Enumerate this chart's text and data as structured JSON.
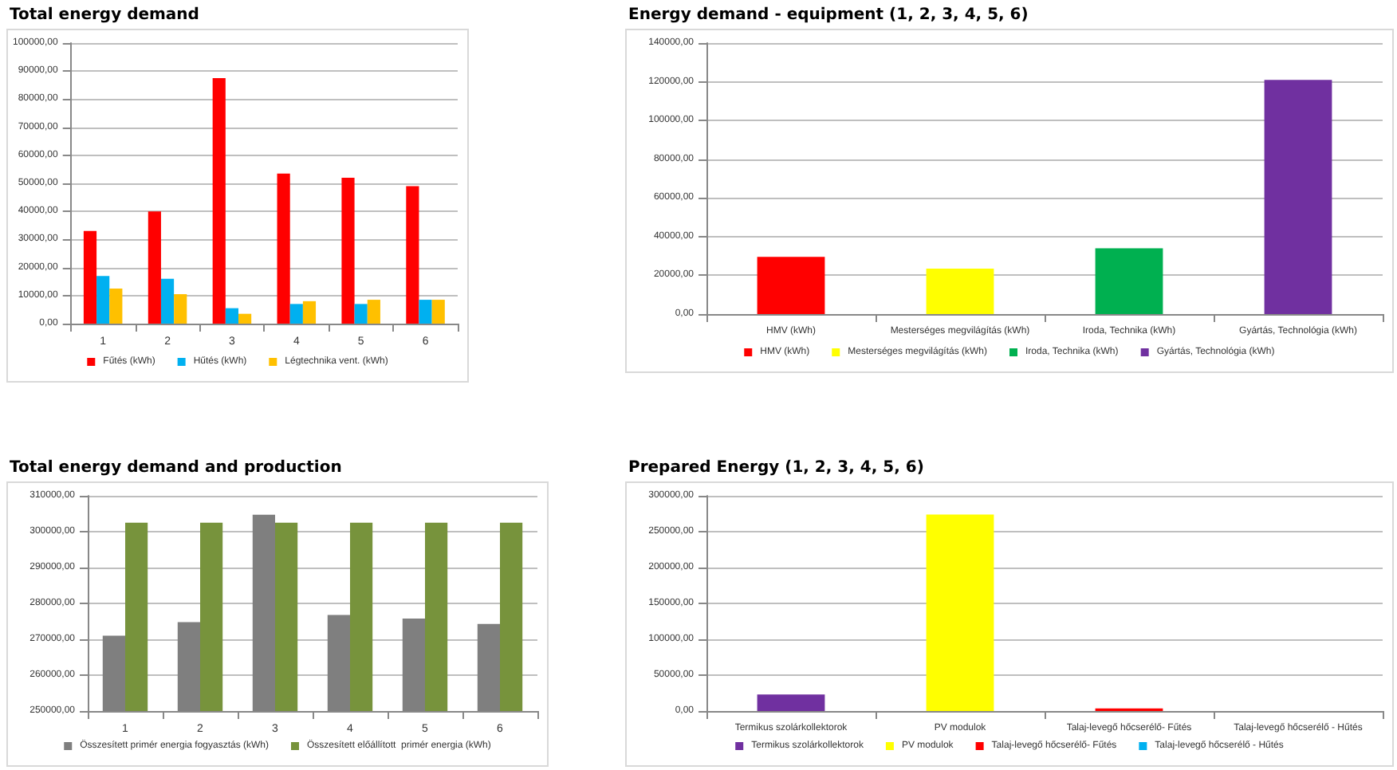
{
  "chart_data": [
    {
      "type": "bar",
      "title": "Total energy demand",
      "categories": [
        "1",
        "2",
        "3",
        "4",
        "5",
        "6"
      ],
      "series": [
        {
          "name": "Fűtés (kWh)",
          "color": "#ff0000",
          "values": [
            33000,
            40000,
            87500,
            53500,
            52000,
            49000
          ]
        },
        {
          "name": "Hűtés (kWh)",
          "color": "#00b0f0",
          "values": [
            17000,
            16000,
            5500,
            7000,
            7000,
            8500
          ]
        },
        {
          "name": "Légtechnika vent. (kWh)",
          "color": "#ffc000",
          "values": [
            12500,
            10500,
            3500,
            8000,
            8500,
            8500
          ]
        }
      ],
      "ylim": [
        0,
        100000
      ],
      "yticks": [
        {
          "value": 0,
          "label": "0,00"
        },
        {
          "value": 10000,
          "label": "10000,00"
        },
        {
          "value": 20000,
          "label": "20000,00"
        },
        {
          "value": 30000,
          "label": "30000,00"
        },
        {
          "value": 40000,
          "label": "40000,00"
        },
        {
          "value": 50000,
          "label": "50000,00"
        },
        {
          "value": 60000,
          "label": "60000,00"
        },
        {
          "value": 70000,
          "label": "70000,00"
        },
        {
          "value": 80000,
          "label": "80000,00"
        },
        {
          "value": 90000,
          "label": "90000,00"
        },
        {
          "value": 100000,
          "label": "100000,00"
        }
      ],
      "grid": "y",
      "legend": "bottom"
    },
    {
      "type": "bar",
      "title": "Energy demand - equipment (1, 2, 3, 4, 5, 6)",
      "categories": [
        "HMV (kWh)",
        "Mesterséges megvilágítás (kWh)",
        "Iroda, Technika (kWh)",
        "Gyártás, Technológia (kWh)"
      ],
      "stacked": true,
      "series": [
        {
          "name": "HMV (kWh)",
          "color": "#ff0000",
          "values": [
            29500,
            null,
            null,
            null
          ]
        },
        {
          "name": "Mesterséges megvilágítás (kWh)",
          "color": "#ffff00",
          "values": [
            null,
            23500,
            null,
            null
          ]
        },
        {
          "name": "Iroda, Technika (kWh)",
          "color": "#00b050",
          "values": [
            null,
            null,
            34000,
            null
          ]
        },
        {
          "name": "Gyártás, Technológia (kWh)",
          "color": "#7030a0",
          "values": [
            null,
            null,
            null,
            121000
          ]
        }
      ],
      "ylim": [
        0,
        140000
      ],
      "yticks": [
        {
          "value": 0,
          "label": "0,00"
        },
        {
          "value": 20000,
          "label": "20000,00"
        },
        {
          "value": 40000,
          "label": "40000,00"
        },
        {
          "value": 60000,
          "label": "60000,00"
        },
        {
          "value": 80000,
          "label": "80000,00"
        },
        {
          "value": 100000,
          "label": "100000,00"
        },
        {
          "value": 120000,
          "label": "120000,00"
        },
        {
          "value": 140000,
          "label": "140000,00"
        }
      ],
      "grid": "y",
      "legend": "bottom"
    },
    {
      "type": "bar",
      "title": "Total energy demand and production",
      "categories": [
        "1",
        "2",
        "3",
        "4",
        "5",
        "6"
      ],
      "series": [
        {
          "name": "Összesített primér energia fogyasztás (kWh)",
          "color": "#7f7f7f",
          "values": [
            271000,
            274800,
            304700,
            276800,
            275800,
            274300
          ]
        },
        {
          "name": "Összesített előállított  primér energia (kWh)",
          "color": "#77933c",
          "values": [
            302500,
            302500,
            302500,
            302500,
            302500,
            302500
          ]
        }
      ],
      "ylim": [
        250000,
        310000
      ],
      "yticks": [
        {
          "value": 250000,
          "label": "250000,00"
        },
        {
          "value": 260000,
          "label": "260000,00"
        },
        {
          "value": 270000,
          "label": "270000,00"
        },
        {
          "value": 280000,
          "label": "280000,00"
        },
        {
          "value": 290000,
          "label": "290000,00"
        },
        {
          "value": 300000,
          "label": "300000,00"
        },
        {
          "value": 310000,
          "label": "310000,00"
        }
      ],
      "grid": "y",
      "legend": "bottom"
    },
    {
      "type": "bar",
      "title": "Prepared Energy  (1, 2, 3, 4, 5, 6)",
      "categories": [
        "Termikus szolárkollektorok",
        "PV modulok",
        "Talaj-levegő hőcserélő- Fűtés",
        "Talaj-levegő hőcserélő - Hűtés"
      ],
      "stacked": true,
      "series": [
        {
          "name": "Termikus szolárkollektorok",
          "color": "#7030a0",
          "values": [
            23000,
            null,
            null,
            null
          ]
        },
        {
          "name": "PV modulok",
          "color": "#ffff00",
          "values": [
            null,
            274000,
            null,
            null
          ]
        },
        {
          "name": "Talaj-levegő hőcserélő- Fűtés",
          "color": "#ff0000",
          "values": [
            null,
            null,
            3500,
            null
          ]
        },
        {
          "name": "Talaj-levegő hőcserélő - Hűtés",
          "color": "#00b0f0",
          "values": [
            null,
            null,
            null,
            0
          ]
        }
      ],
      "ylim": [
        0,
        300000
      ],
      "yticks": [
        {
          "value": 0,
          "label": "0,00"
        },
        {
          "value": 50000,
          "label": "50000,00"
        },
        {
          "value": 100000,
          "label": "100000,00"
        },
        {
          "value": 150000,
          "label": "150000,00"
        },
        {
          "value": 200000,
          "label": "200000,00"
        },
        {
          "value": 250000,
          "label": "250000,00"
        },
        {
          "value": 300000,
          "label": "300000,00"
        }
      ],
      "grid": "y",
      "legend": "bottom"
    }
  ]
}
